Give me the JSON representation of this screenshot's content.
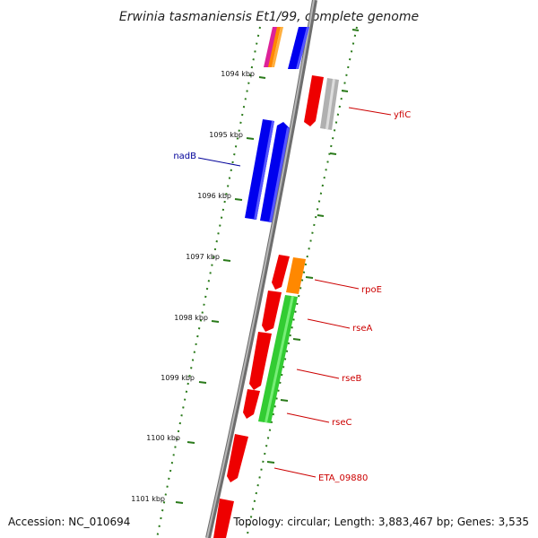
{
  "title": "Erwinia tasmaniensis Et1/99, complete genome",
  "footer": {
    "accession": "Accession: NC_010694",
    "summary": "Topology: circular; Length: 3,883,467 bp; Genes: 3,535"
  },
  "kbp_labels": [
    "1094 kbp",
    "1095 kbp",
    "1096 kbp",
    "1097 kbp",
    "1098 kbp",
    "1099 kbp",
    "1100 kbp",
    "1101 kbp"
  ],
  "gene_labels": [
    "yfiC",
    "nadB",
    "rpoE",
    "rseA",
    "rseB",
    "rseC",
    "ETA_09880"
  ],
  "colors": {
    "backbone": "#808080",
    "tick": "#2a7a1a",
    "red_gene": "#ee0000",
    "blue_gene": "#0000ee",
    "green_gene": "#33cc33",
    "orange_gene": "#ff8800",
    "grey_gene": "#b0b0b0",
    "label_red": "#cc0000",
    "label_blue": "#000099"
  }
}
